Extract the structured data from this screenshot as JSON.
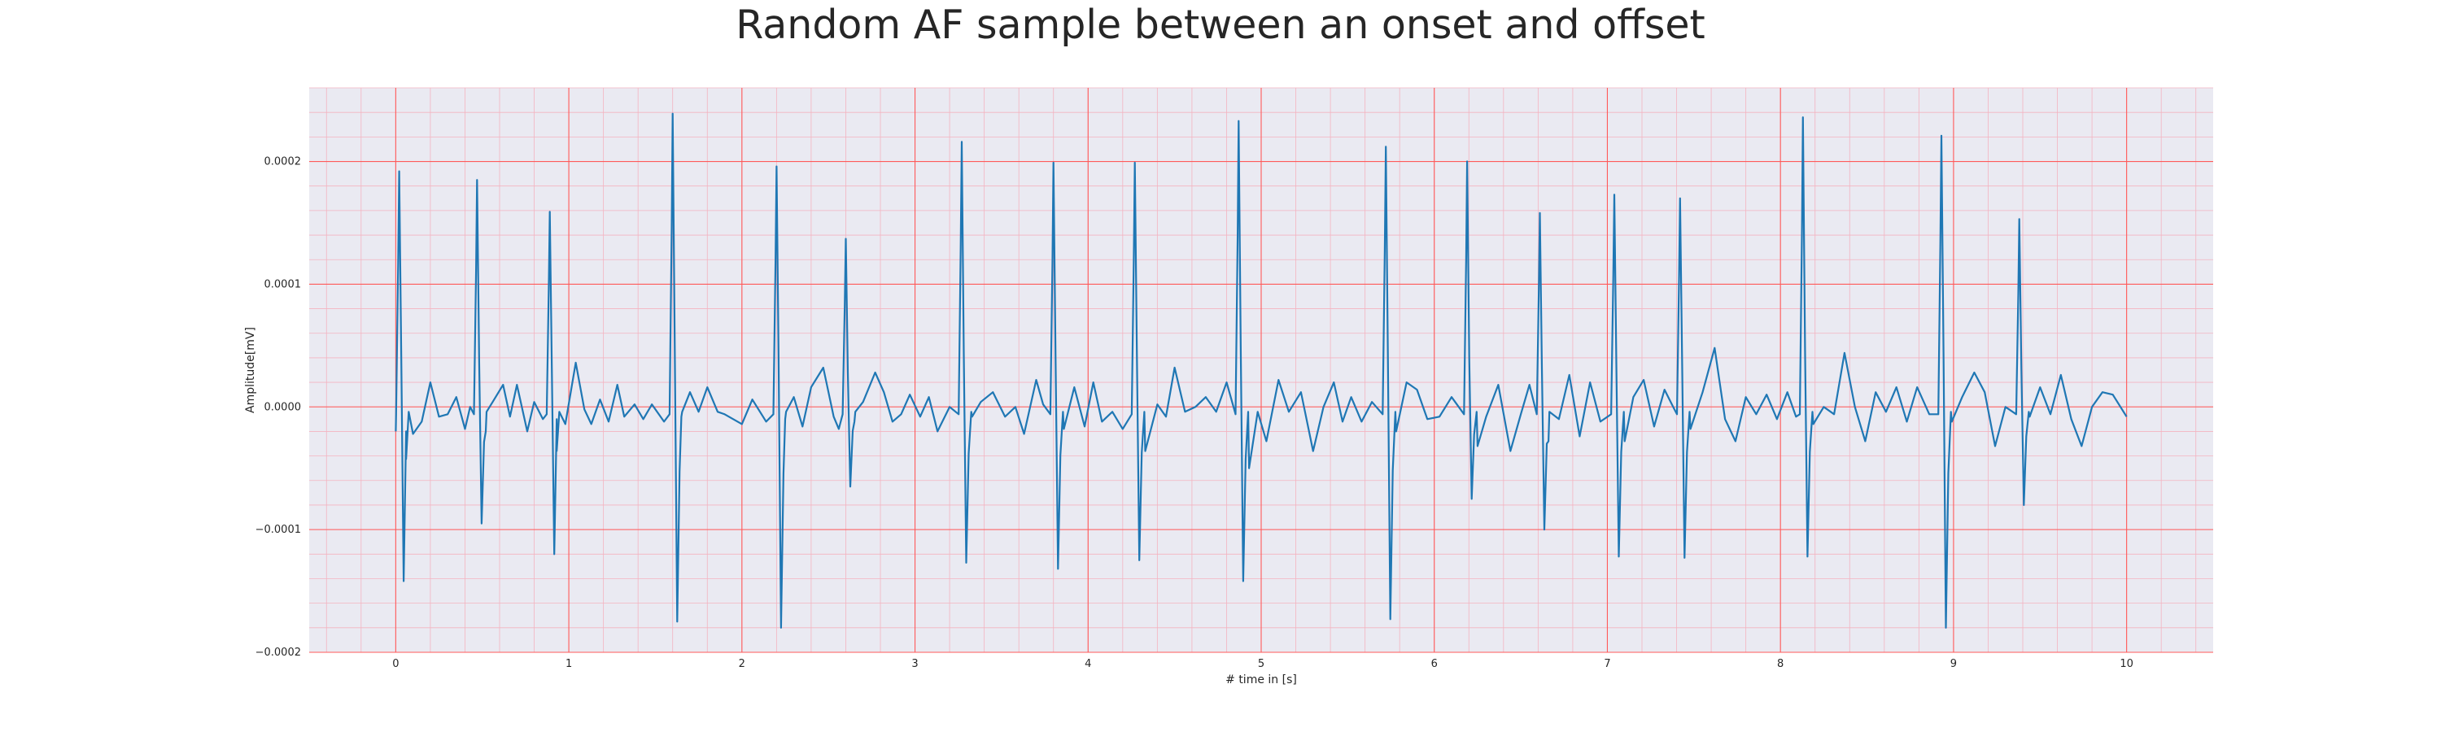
{
  "chart_data": {
    "type": "line",
    "title": "Random AF sample between an onset and offset",
    "xlabel": "# time in [s]",
    "ylabel": "Amplitude[mV]",
    "xlim": [
      -0.5,
      10.5
    ],
    "ylim": [
      -0.0002,
      0.00026
    ],
    "x_ticks": [
      0,
      1,
      2,
      3,
      4,
      5,
      6,
      7,
      8,
      9,
      10
    ],
    "x_tick_labels": [
      "0",
      "1",
      "2",
      "3",
      "4",
      "5",
      "6",
      "7",
      "8",
      "9",
      "10"
    ],
    "y_ticks": [
      -0.0002,
      -0.0001,
      0,
      0.0001,
      0.0002
    ],
    "y_tick_labels": [
      "−0.0002",
      "−0.0001",
      "0.0000",
      "0.0001",
      "0.0002"
    ],
    "grid": true,
    "minor_grid": true,
    "colors": {
      "background": "#eaeaf2",
      "major_grid": "#ff5a5a",
      "minor_grid": "#f4b3c0",
      "line": "#1f77b4",
      "text": "#262626"
    },
    "series": [
      {
        "x_start": 0,
        "x_end": 10,
        "beats": [
          {
            "t": 0.02,
            "r": 0.000192,
            "s": -0.000142
          },
          {
            "t": 0.47,
            "r": 0.000185,
            "s": -9.5e-05
          },
          {
            "t": 0.89,
            "r": 0.000159,
            "s": -0.00012
          },
          {
            "t": 1.6,
            "r": 0.000239,
            "s": -0.000175
          },
          {
            "t": 2.2,
            "r": 0.000196,
            "s": -0.00018
          },
          {
            "t": 2.6,
            "r": 0.000137,
            "s": -6.5e-05
          },
          {
            "t": 3.27,
            "r": 0.000216,
            "s": -0.000127
          },
          {
            "t": 3.8,
            "r": 0.000199,
            "s": -0.000132
          },
          {
            "t": 4.27,
            "r": 0.000199,
            "s": -0.000125
          },
          {
            "t": 4.87,
            "r": 0.000233,
            "s": -0.000142
          },
          {
            "t": 5.72,
            "r": 0.000212,
            "s": -0.000173
          },
          {
            "t": 6.19,
            "r": 0.0002,
            "s": -7.5e-05
          },
          {
            "t": 6.61,
            "r": 0.000158,
            "s": -0.0001
          },
          {
            "t": 7.04,
            "r": 0.000173,
            "s": -0.000122
          },
          {
            "t": 7.42,
            "r": 0.00017,
            "s": -0.000123
          },
          {
            "t": 8.13,
            "r": 0.000236,
            "s": -0.000122
          },
          {
            "t": 8.93,
            "r": 0.000221,
            "s": -0.00018
          },
          {
            "t": 9.38,
            "r": 0.000153,
            "s": -8e-05
          }
        ],
        "baseline_points": [
          [
            0.0,
            -2e-05
          ],
          [
            0.06,
            -2e-05
          ],
          [
            0.1,
            -2.2e-05
          ],
          [
            0.15,
            -1.2e-05
          ],
          [
            0.2,
            2e-05
          ],
          [
            0.25,
            -8e-06
          ],
          [
            0.3,
            -6e-06
          ],
          [
            0.35,
            8e-06
          ],
          [
            0.4,
            -1.8e-05
          ],
          [
            0.43,
            0.0
          ],
          [
            0.52,
            -2e-05
          ],
          [
            0.56,
            4e-06
          ],
          [
            0.62,
            1.8e-05
          ],
          [
            0.66,
            -8e-06
          ],
          [
            0.7,
            1.8e-05
          ],
          [
            0.76,
            -2e-05
          ],
          [
            0.8,
            4e-06
          ],
          [
            0.85,
            -1e-05
          ],
          [
            0.93,
            -1e-05
          ],
          [
            0.98,
            -1.4e-05
          ],
          [
            1.04,
            3.6e-05
          ],
          [
            1.09,
            -2e-06
          ],
          [
            1.13,
            -1.4e-05
          ],
          [
            1.18,
            6e-06
          ],
          [
            1.23,
            -1.2e-05
          ],
          [
            1.28,
            1.8e-05
          ],
          [
            1.32,
            -8e-06
          ],
          [
            1.38,
            2e-06
          ],
          [
            1.43,
            -1e-05
          ],
          [
            1.48,
            2e-06
          ],
          [
            1.55,
            -1.2e-05
          ],
          [
            1.65,
            -8e-06
          ],
          [
            1.7,
            1.2e-05
          ],
          [
            1.75,
            -4e-06
          ],
          [
            1.8,
            1.6e-05
          ],
          [
            1.86,
            -4e-06
          ],
          [
            1.9,
            -6e-06
          ],
          [
            2.0,
            -1.4e-05
          ],
          [
            2.06,
            6e-06
          ],
          [
            2.14,
            -1.2e-05
          ],
          [
            2.25,
            -1e-05
          ],
          [
            2.3,
            8e-06
          ],
          [
            2.35,
            -1.6e-05
          ],
          [
            2.4,
            1.6e-05
          ],
          [
            2.47,
            3.2e-05
          ],
          [
            2.53,
            -8e-06
          ],
          [
            2.56,
            -1.8e-05
          ],
          [
            2.65,
            -1.2e-05
          ],
          [
            2.7,
            4e-06
          ],
          [
            2.77,
            2.8e-05
          ],
          [
            2.82,
            1.2e-05
          ],
          [
            2.87,
            -1.2e-05
          ],
          [
            2.92,
            -6e-06
          ],
          [
            2.97,
            1e-05
          ],
          [
            3.03,
            -8e-06
          ],
          [
            3.08,
            8e-06
          ],
          [
            3.13,
            -2e-05
          ],
          [
            3.2,
            0.0
          ],
          [
            3.33,
            -8e-06
          ],
          [
            3.38,
            4e-06
          ],
          [
            3.45,
            1.2e-05
          ],
          [
            3.52,
            -8e-06
          ],
          [
            3.58,
            0.0
          ],
          [
            3.63,
            -2.2e-05
          ],
          [
            3.7,
            2.2e-05
          ],
          [
            3.74,
            2e-06
          ],
          [
            3.86,
            -1.8e-05
          ],
          [
            3.92,
            1.6e-05
          ],
          [
            3.98,
            -1.6e-05
          ],
          [
            4.03,
            2e-05
          ],
          [
            4.08,
            -1.2e-05
          ],
          [
            4.14,
            -4e-06
          ],
          [
            4.2,
            -1.8e-05
          ],
          [
            4.33,
            -3.6e-05
          ],
          [
            4.4,
            2e-06
          ],
          [
            4.45,
            -8e-06
          ],
          [
            4.5,
            3.2e-05
          ],
          [
            4.56,
            -4e-06
          ],
          [
            4.62,
            0.0
          ],
          [
            4.68,
            8e-06
          ],
          [
            4.74,
            -4e-06
          ],
          [
            4.8,
            2e-05
          ],
          [
            4.93,
            -5e-05
          ],
          [
            4.98,
            -4e-06
          ],
          [
            5.03,
            -2.8e-05
          ],
          [
            5.1,
            2.2e-05
          ],
          [
            5.16,
            -4e-06
          ],
          [
            5.23,
            1.2e-05
          ],
          [
            5.3,
            -3.6e-05
          ],
          [
            5.36,
            0.0
          ],
          [
            5.42,
            2e-05
          ],
          [
            5.47,
            -1.2e-05
          ],
          [
            5.52,
            8e-06
          ],
          [
            5.58,
            -1.2e-05
          ],
          [
            5.64,
            4e-06
          ],
          [
            5.78,
            -2e-05
          ],
          [
            5.84,
            2e-05
          ],
          [
            5.9,
            1.4e-05
          ],
          [
            5.96,
            -1e-05
          ],
          [
            6.03,
            -8e-06
          ],
          [
            6.1,
            8e-06
          ],
          [
            6.25,
            -3.2e-05
          ],
          [
            6.3,
            -8e-06
          ],
          [
            6.37,
            1.8e-05
          ],
          [
            6.44,
            -3.6e-05
          ],
          [
            6.5,
            -6e-06
          ],
          [
            6.55,
            1.8e-05
          ],
          [
            6.66,
            -2.8e-05
          ],
          [
            6.72,
            -1e-05
          ],
          [
            6.78,
            2.6e-05
          ],
          [
            6.84,
            -2.4e-05
          ],
          [
            6.9,
            2e-05
          ],
          [
            6.96,
            -1.2e-05
          ],
          [
            7.1,
            -2.8e-05
          ],
          [
            7.15,
            8e-06
          ],
          [
            7.21,
            2.2e-05
          ],
          [
            7.27,
            -1.6e-05
          ],
          [
            7.33,
            1.4e-05
          ],
          [
            7.38,
            0.0
          ],
          [
            7.48,
            -1.8e-05
          ],
          [
            7.55,
            1.2e-05
          ],
          [
            7.62,
            4.8e-05
          ],
          [
            7.68,
            -1e-05
          ],
          [
            7.74,
            -2.8e-05
          ],
          [
            7.8,
            8e-06
          ],
          [
            7.86,
            -6e-06
          ],
          [
            7.92,
            1e-05
          ],
          [
            7.98,
            -1e-05
          ],
          [
            8.04,
            1.2e-05
          ],
          [
            8.09,
            -8e-06
          ],
          [
            8.19,
            -1.4e-05
          ],
          [
            8.25,
            0.0
          ],
          [
            8.31,
            -6e-06
          ],
          [
            8.37,
            4.4e-05
          ],
          [
            8.43,
            0.0
          ],
          [
            8.49,
            -2.8e-05
          ],
          [
            8.55,
            1.2e-05
          ],
          [
            8.61,
            -4e-06
          ],
          [
            8.67,
            1.6e-05
          ],
          [
            8.73,
            -1.2e-05
          ],
          [
            8.79,
            1.6e-05
          ],
          [
            8.86,
            -6e-06
          ],
          [
            8.99,
            -1.2e-05
          ],
          [
            9.05,
            8e-06
          ],
          [
            9.12,
            2.8e-05
          ],
          [
            9.18,
            1.2e-05
          ],
          [
            9.24,
            -3.2e-05
          ],
          [
            9.3,
            0.0
          ],
          [
            9.44,
            -8e-06
          ],
          [
            9.5,
            1.6e-05
          ],
          [
            9.56,
            -6e-06
          ],
          [
            9.62,
            2.6e-05
          ],
          [
            9.68,
            -1e-05
          ],
          [
            9.74,
            -3.2e-05
          ],
          [
            9.8,
            0.0
          ],
          [
            9.86,
            1.2e-05
          ],
          [
            9.92,
            1e-05
          ],
          [
            10.0,
            -8e-06
          ]
        ]
      }
    ]
  }
}
